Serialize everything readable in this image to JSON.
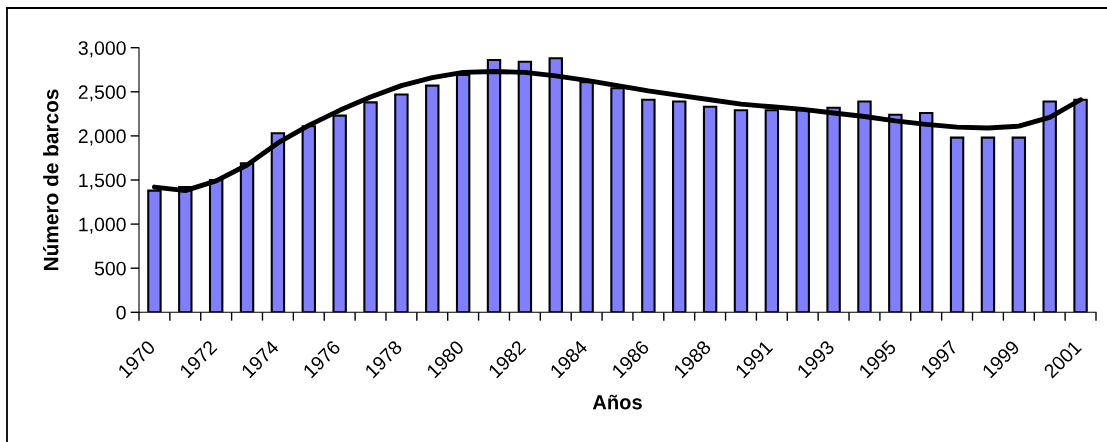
{
  "chart_data": {
    "type": "bar",
    "xlabel": "Años",
    "ylabel": "Número de barcos",
    "categories": [
      "1970",
      null,
      "1972",
      null,
      "1974",
      null,
      "1976",
      null,
      "1978",
      null,
      "1980",
      null,
      "1982",
      null,
      "1984",
      null,
      "1986",
      null,
      "1988",
      null,
      "1991",
      null,
      "1993",
      null,
      "1995",
      null,
      "1997",
      null,
      "1999",
      null,
      "2001"
    ],
    "series": [
      {
        "color": "#8080ff",
        "values": [
          1380,
          1420,
          1500,
          1690,
          2030,
          2110,
          2230,
          2380,
          2470,
          2570,
          2690,
          2860,
          2840,
          2880,
          2610,
          2540,
          2410,
          2390,
          2330,
          2290,
          2290,
          2290,
          2320,
          2390,
          2240,
          2260,
          1980,
          1980,
          1980,
          2390,
          2410
        ]
      },
      {
        "type": "line",
        "color": "#000000",
        "line_style": "solid",
        "values": [
          1420,
          1380,
          1490,
          1670,
          1920,
          2120,
          2290,
          2440,
          2570,
          2660,
          2720,
          2730,
          2720,
          2680,
          2630,
          2570,
          2510,
          2460,
          2410,
          2360,
          2330,
          2300,
          2260,
          2220,
          2170,
          2130,
          2100,
          2090,
          2110,
          2210,
          2410
        ]
      }
    ],
    "ylim": [
      0,
      3000
    ],
    "yticks": [
      0,
      500,
      {
        "value": 1000,
        "label": "1,000"
      },
      {
        "value": 1500,
        "label": "1,500"
      },
      {
        "value": 2000,
        "label": "2,000"
      },
      {
        "value": 2500,
        "label": "2,500"
      },
      {
        "value": 3000,
        "label": "3,000"
      }
    ]
  }
}
